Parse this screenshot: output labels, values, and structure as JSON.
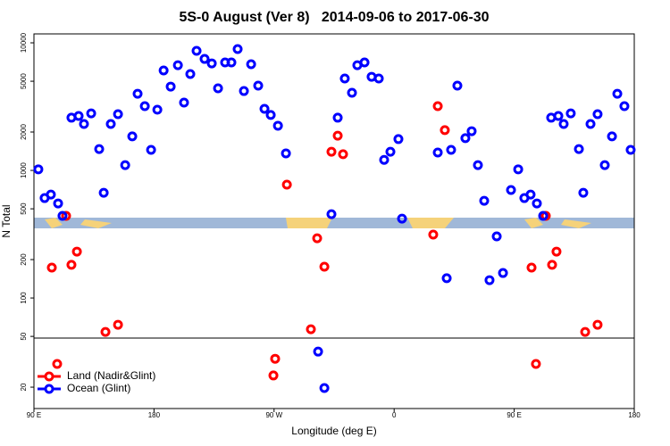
{
  "chart_data": {
    "type": "scatter",
    "title": "5S-0 August (Ver 8)   2014-09-06 to 2017-06-30",
    "x_label": "Longitude (deg E)",
    "y_label": "N Total",
    "ylog": true,
    "legend": "bottom-left",
    "xlim": [
      90,
      540
    ],
    "xticks": [
      {
        "value": 90,
        "label": "90 E"
      },
      180,
      {
        "value": 270,
        "label": "90 W"
      },
      {
        "value": 360,
        "label": "0"
      },
      {
        "value": 450,
        "label": "90 E"
      },
      {
        "value": 540,
        "label": "180"
      }
    ],
    "ylim": [
      13.6,
      11750
    ],
    "yticks": [
      20,
      50,
      100,
      200,
      500,
      1000,
      2000,
      5000,
      10000
    ],
    "series": [
      {
        "name": "Land (Nadir&Glint)",
        "color": "#ff0000",
        "x": [
          103.4,
          107.4,
          114.1,
          118.1,
          122.2,
          143.6,
          153.0,
          269.5,
          270.8,
          279.6,
          297.6,
          302.3,
          307.7,
          313.0,
          317.7,
          321.7,
          389.3,
          392.7,
          398.0,
          463.0,
          466.3,
          473.7,
          478.4,
          481.7,
          503.2,
          512.5
        ],
        "values": [
          173,
          30.4,
          440,
          182,
          231,
          54.2,
          61.7,
          24.7,
          33.4,
          773,
          56.9,
          294,
          176,
          1400,
          1870,
          1340,
          314,
          3190,
          2070,
          173,
          30.4,
          440,
          182,
          231,
          54.2,
          61.7
        ]
      },
      {
        "name": "Ocean (Glint)",
        "color": "#0000ff",
        "x": [
          93.3,
          98.0,
          102.7,
          108.1,
          111.4,
          118.1,
          123.5,
          127.5,
          132.9,
          138.9,
          142.3,
          147.6,
          153.0,
          158.4,
          163.7,
          167.7,
          173.1,
          177.8,
          182.5,
          187.2,
          192.5,
          197.9,
          202.5,
          207.2,
          211.9,
          217.9,
          223.3,
          228.0,
          233.3,
          238.0,
          242.7,
          247.4,
          252.8,
          258.1,
          262.8,
          267.5,
          272.9,
          278.9,
          313.0,
          303.0,
          307.7,
          317.7,
          323.0,
          328.4,
          332.4,
          337.8,
          343.1,
          348.5,
          352.5,
          357.2,
          363.2,
          365.9,
          392.7,
          399.4,
          402.7,
          407.4,
          413.4,
          418.1,
          422.8,
          427.5,
          436.9,
          431.5,
          441.6,
          447.6,
          453.0,
          457.6,
          462.3,
          467.0,
          471.7,
          477.7,
          483.1,
          487.1,
          492.4,
          498.5,
          501.8,
          507.2,
          512.5,
          517.9,
          523.3,
          527.3,
          532.6,
          537.3
        ],
        "values": [
          1020,
          607,
          647,
          551,
          440,
          2590,
          2670,
          2310,
          2800,
          1470,
          668,
          2310,
          2760,
          1100,
          1850,
          3990,
          3190,
          1450,
          2990,
          6070,
          4540,
          6680,
          3400,
          5690,
          8650,
          7480,
          6900,
          4400,
          7020,
          7020,
          8935,
          4190,
          6800,
          4620,
          3040,
          2720,
          2240,
          1360,
          454,
          38.0,
          19.7,
          2590,
          5250,
          4060,
          6680,
          7020,
          5420,
          5250,
          1210,
          1400,
          1760,
          419,
          1380,
          143,
          1450,
          4620,
          1790,
          2030,
          1100,
          578,
          304,
          138,
          157,
          702,
          1020,
          607,
          647,
          551,
          440,
          2590,
          2670,
          2310,
          2800,
          1470,
          668,
          2310,
          2760,
          1100,
          1850,
          3990,
          3190,
          1450
        ]
      }
    ]
  }
}
